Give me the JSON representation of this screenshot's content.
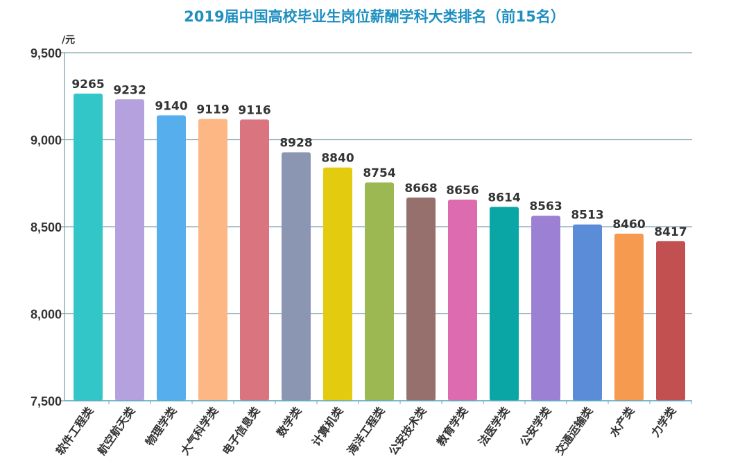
{
  "chart_data": {
    "type": "bar",
    "title": "2019届中国高校毕业生岗位薪酬学科大类排名（前15名）",
    "ylabel": "/元",
    "xlabel": "",
    "ylim": [
      7500,
      9500
    ],
    "yticks": [
      7500,
      8000,
      8500,
      9000,
      9500
    ],
    "ytick_labels": [
      "7,500",
      "8,000",
      "8,500",
      "9,000",
      "9,500"
    ],
    "grid": true,
    "categories": [
      "软件工程类",
      "航空航天类",
      "物理学类",
      "大气科学类",
      "电子信息类",
      "数学类",
      "计算机类",
      "海洋工程类",
      "公安技术类",
      "教育学类",
      "法医学类",
      "公安学类",
      "交通运输类",
      "水产类",
      "力学类"
    ],
    "values": [
      9265,
      9232,
      9140,
      9119,
      9116,
      8928,
      8840,
      8754,
      8668,
      8656,
      8614,
      8563,
      8513,
      8460,
      8417
    ],
    "colors": [
      "#33c6c9",
      "#b4a1de",
      "#57aeec",
      "#fdb785",
      "#da7580",
      "#8b97b2",
      "#e3cc10",
      "#9bb852",
      "#96706c",
      "#dd6bb0",
      "#0aa6a6",
      "#9b80d4",
      "#5a8cd8",
      "#f59a4e",
      "#c25050"
    ]
  }
}
